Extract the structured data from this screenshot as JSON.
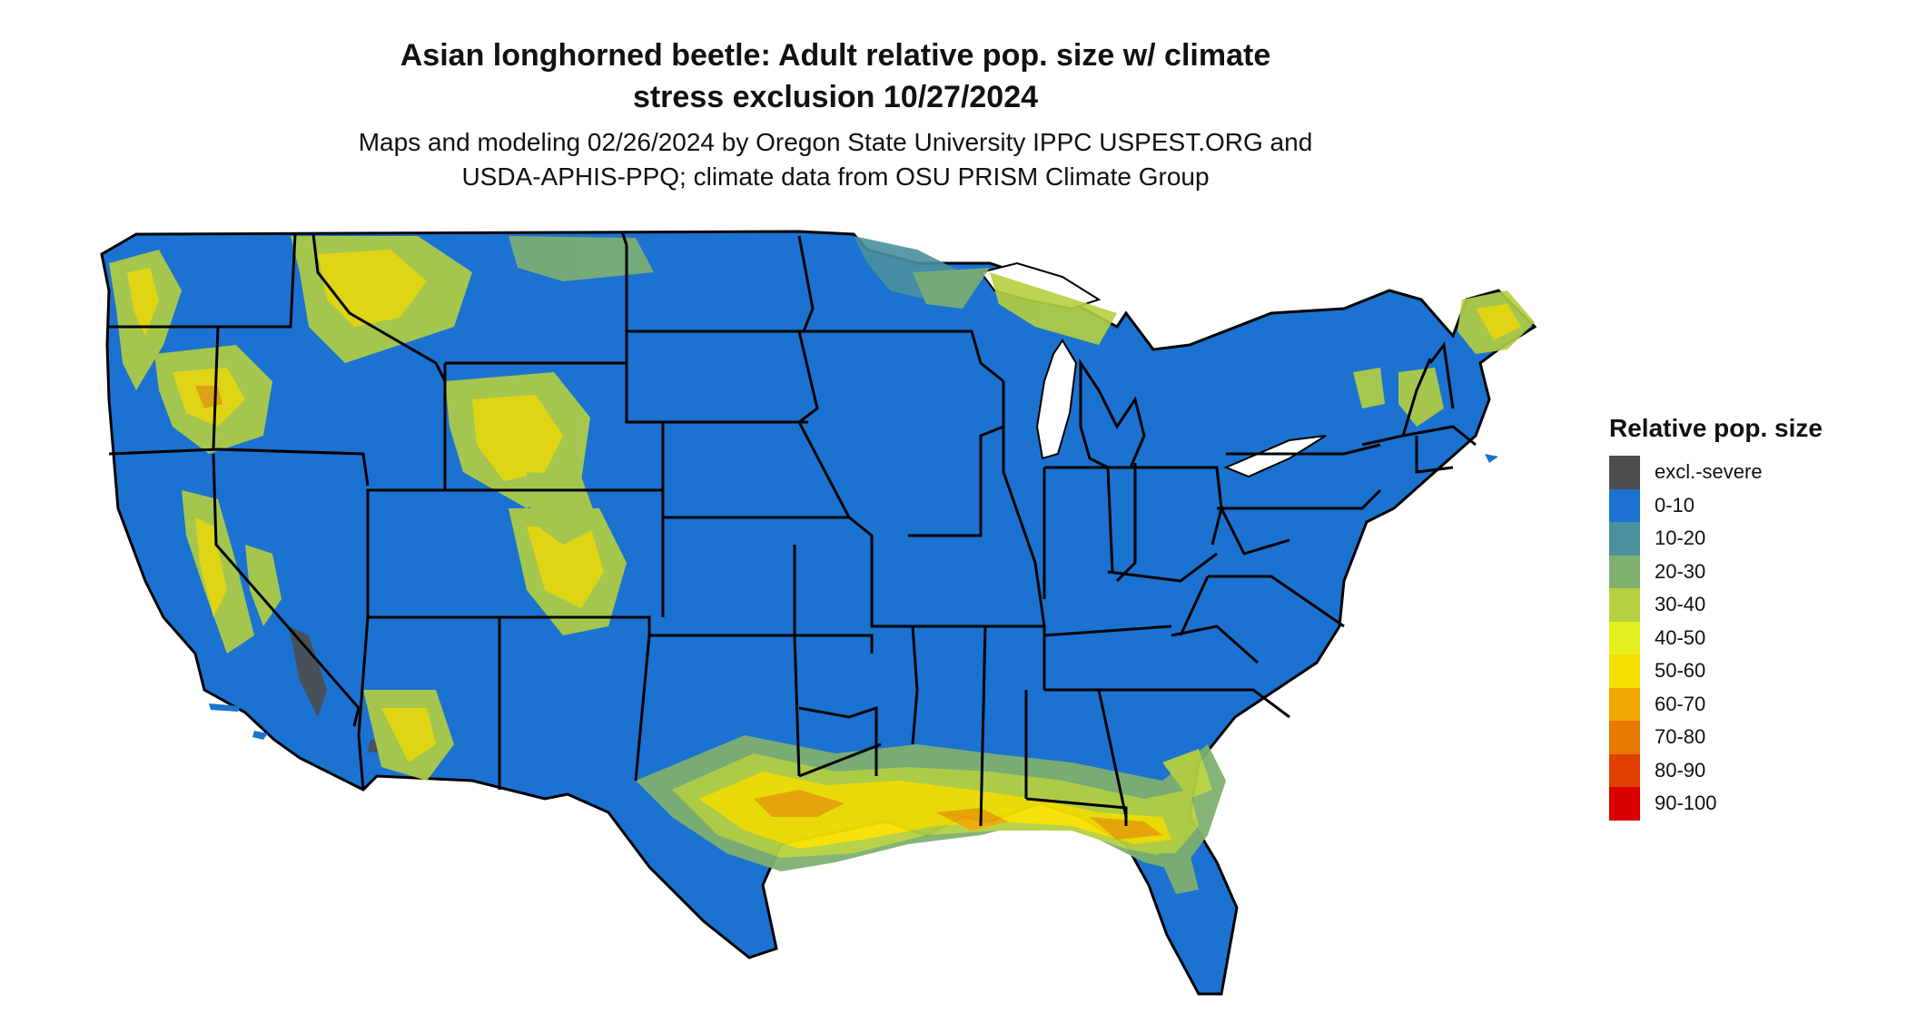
{
  "title": {
    "line1": "Asian longhorned beetle: Adult relative pop. size w/ climate",
    "line2": "stress exclusion 10/27/2024"
  },
  "subtitle": {
    "line1": "Maps and modeling 02/26/2024 by Oregon State University IPPC USPEST.ORG and",
    "line2": "USDA-APHIS-PPQ; climate data from OSU PRISM Climate Group"
  },
  "legend": {
    "title": "Relative pop. size",
    "items": [
      {
        "label": "excl.-severe",
        "color": "#4d4d4d"
      },
      {
        "label": "0-10",
        "color": "#1b72d0"
      },
      {
        "label": "10-20",
        "color": "#4a90a0"
      },
      {
        "label": "20-30",
        "color": "#7fb070"
      },
      {
        "label": "30-40",
        "color": "#b5d040"
      },
      {
        "label": "40-50",
        "color": "#e5f020"
      },
      {
        "label": "50-60",
        "color": "#f5e000"
      },
      {
        "label": "60-70",
        "color": "#f0a800"
      },
      {
        "label": "70-80",
        "color": "#e87800"
      },
      {
        "label": "80-90",
        "color": "#e04000"
      },
      {
        "label": "90-100",
        "color": "#d80000"
      }
    ]
  },
  "map": {
    "region": "Contiguous United States",
    "base_color": "#1b72d0",
    "border_color": "#000000"
  }
}
